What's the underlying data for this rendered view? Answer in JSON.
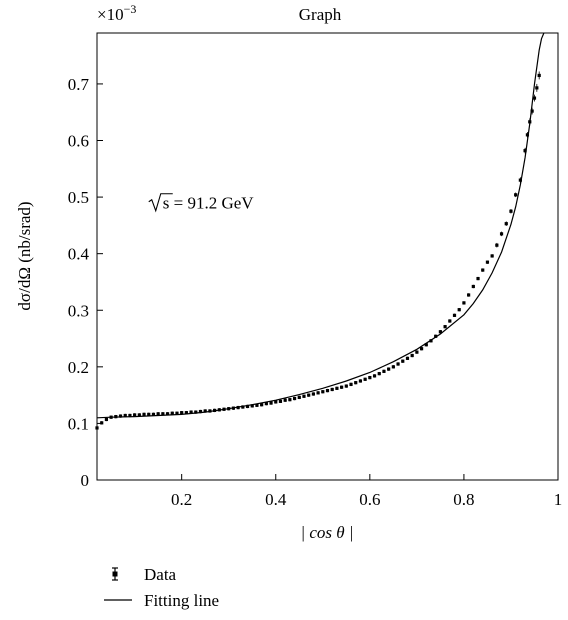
{
  "chart_data": {
    "type": "scatter",
    "title": "Graph",
    "xlabel": "| cos θ |",
    "ylabel": "dσ/dΩ (nb/srad)",
    "y_multiplier": "×10",
    "y_multiplier_exp": "−3",
    "annotation": {
      "sqrt_arg": "s",
      "text": " = 91.2 GeV",
      "x": 0.13,
      "y": 0.49
    },
    "xlim": [
      0.02,
      1.0
    ],
    "ylim": [
      0,
      0.79
    ],
    "xticks": [
      0.2,
      0.4,
      0.6,
      0.8,
      1.0
    ],
    "xtick_labels": [
      "0.2",
      "0.4",
      "0.6",
      "0.8",
      "1"
    ],
    "yticks": [
      0,
      0.1,
      0.2,
      0.3,
      0.4,
      0.5,
      0.6,
      0.7
    ],
    "ytick_labels": [
      "0",
      "0.1",
      "0.2",
      "0.3",
      "0.4",
      "0.5",
      "0.6",
      "0.7"
    ],
    "grid": false,
    "legend_position": "bottom-left outside",
    "series": [
      {
        "name": "Data",
        "kind": "points-with-errorbars",
        "x": [
          0.02,
          0.03,
          0.04,
          0.05,
          0.06,
          0.07,
          0.08,
          0.09,
          0.1,
          0.11,
          0.12,
          0.13,
          0.14,
          0.15,
          0.16,
          0.17,
          0.18,
          0.19,
          0.2,
          0.21,
          0.22,
          0.23,
          0.24,
          0.25,
          0.26,
          0.27,
          0.28,
          0.29,
          0.3,
          0.31,
          0.32,
          0.33,
          0.34,
          0.35,
          0.36,
          0.37,
          0.38,
          0.39,
          0.4,
          0.41,
          0.42,
          0.43,
          0.44,
          0.45,
          0.46,
          0.47,
          0.48,
          0.49,
          0.5,
          0.51,
          0.52,
          0.53,
          0.54,
          0.55,
          0.56,
          0.57,
          0.58,
          0.59,
          0.6,
          0.61,
          0.62,
          0.63,
          0.64,
          0.65,
          0.66,
          0.67,
          0.68,
          0.69,
          0.7,
          0.71,
          0.72,
          0.73,
          0.74,
          0.75,
          0.76,
          0.77,
          0.78,
          0.79,
          0.8,
          0.81,
          0.82,
          0.83,
          0.84,
          0.85,
          0.86,
          0.87,
          0.88,
          0.89,
          0.9,
          0.91,
          0.92,
          0.93,
          0.935,
          0.94,
          0.945,
          0.95,
          0.955,
          0.96
        ],
        "y": [
          0.092,
          0.101,
          0.107,
          0.111,
          0.112,
          0.113,
          0.114,
          0.114,
          0.115,
          0.115,
          0.116,
          0.116,
          0.116,
          0.117,
          0.117,
          0.117,
          0.118,
          0.118,
          0.119,
          0.119,
          0.12,
          0.12,
          0.121,
          0.122,
          0.122,
          0.123,
          0.124,
          0.125,
          0.126,
          0.127,
          0.128,
          0.129,
          0.13,
          0.131,
          0.132,
          0.133,
          0.135,
          0.136,
          0.138,
          0.139,
          0.141,
          0.142,
          0.144,
          0.146,
          0.148,
          0.15,
          0.152,
          0.154,
          0.156,
          0.158,
          0.16,
          0.162,
          0.164,
          0.166,
          0.169,
          0.172,
          0.175,
          0.178,
          0.181,
          0.184,
          0.188,
          0.192,
          0.196,
          0.2,
          0.205,
          0.21,
          0.215,
          0.22,
          0.226,
          0.232,
          0.239,
          0.246,
          0.254,
          0.262,
          0.271,
          0.281,
          0.291,
          0.301,
          0.313,
          0.327,
          0.342,
          0.356,
          0.371,
          0.385,
          0.396,
          0.415,
          0.435,
          0.453,
          0.475,
          0.504,
          0.53,
          0.582,
          0.61,
          0.633,
          0.652,
          0.675,
          0.693,
          0.715
        ],
        "err": [
          0.004,
          0.003,
          0.003,
          0.003,
          0.003,
          0.003,
          0.003,
          0.003,
          0.003,
          0.003,
          0.003,
          0.003,
          0.003,
          0.003,
          0.003,
          0.003,
          0.003,
          0.003,
          0.003,
          0.003,
          0.003,
          0.003,
          0.003,
          0.003,
          0.003,
          0.003,
          0.003,
          0.003,
          0.003,
          0.003,
          0.003,
          0.003,
          0.003,
          0.003,
          0.003,
          0.003,
          0.003,
          0.003,
          0.003,
          0.003,
          0.003,
          0.003,
          0.003,
          0.003,
          0.003,
          0.003,
          0.003,
          0.003,
          0.003,
          0.003,
          0.003,
          0.003,
          0.003,
          0.003,
          0.003,
          0.003,
          0.003,
          0.003,
          0.003,
          0.003,
          0.003,
          0.003,
          0.003,
          0.003,
          0.003,
          0.003,
          0.003,
          0.003,
          0.003,
          0.003,
          0.003,
          0.003,
          0.003,
          0.003,
          0.003,
          0.003,
          0.003,
          0.003,
          0.003,
          0.003,
          0.003,
          0.003,
          0.003,
          0.003,
          0.003,
          0.004,
          0.004,
          0.004,
          0.004,
          0.004,
          0.005,
          0.005,
          0.005,
          0.006,
          0.006,
          0.006,
          0.007,
          0.007
        ]
      },
      {
        "name": "Fitting line",
        "kind": "line",
        "x": [
          0.02,
          0.05,
          0.1,
          0.15,
          0.2,
          0.25,
          0.3,
          0.35,
          0.4,
          0.45,
          0.5,
          0.55,
          0.6,
          0.65,
          0.7,
          0.75,
          0.8,
          0.82,
          0.84,
          0.86,
          0.88,
          0.9,
          0.91,
          0.92,
          0.93,
          0.94,
          0.95,
          0.96,
          0.965,
          0.97
        ],
        "y": [
          0.11,
          0.111,
          0.112,
          0.114,
          0.116,
          0.12,
          0.126,
          0.133,
          0.141,
          0.151,
          0.162,
          0.175,
          0.19,
          0.209,
          0.231,
          0.258,
          0.292,
          0.312,
          0.336,
          0.366,
          0.403,
          0.452,
          0.483,
          0.522,
          0.57,
          0.63,
          0.7,
          0.76,
          0.78,
          0.8
        ]
      }
    ]
  }
}
